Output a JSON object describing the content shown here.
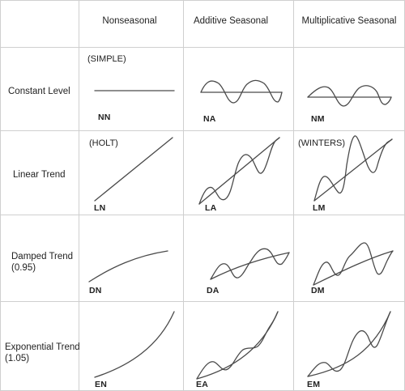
{
  "columns": [
    {
      "label": "Nonseasonal"
    },
    {
      "label": "Additive Seasonal"
    },
    {
      "label": "Multiplicative Seasonal"
    }
  ],
  "rows": [
    {
      "label": "Constant Level"
    },
    {
      "label": "Linear Trend"
    },
    {
      "label": "Damped Trend\n(0.95)"
    },
    {
      "label": "Exponential Trend\n(1.05)"
    }
  ],
  "cells": [
    {
      "code": "NN",
      "alias": "(SIMPLE)"
    },
    {
      "code": "NA",
      "alias": ""
    },
    {
      "code": "NM",
      "alias": ""
    },
    {
      "code": "LN",
      "alias": "(HOLT)"
    },
    {
      "code": "LA",
      "alias": ""
    },
    {
      "code": "LM",
      "alias": "(WINTERS)"
    },
    {
      "code": "DN",
      "alias": ""
    },
    {
      "code": "DA",
      "alias": ""
    },
    {
      "code": "DM",
      "alias": ""
    },
    {
      "code": "EN",
      "alias": ""
    },
    {
      "code": "EA",
      "alias": ""
    },
    {
      "code": "EM",
      "alias": ""
    }
  ]
}
